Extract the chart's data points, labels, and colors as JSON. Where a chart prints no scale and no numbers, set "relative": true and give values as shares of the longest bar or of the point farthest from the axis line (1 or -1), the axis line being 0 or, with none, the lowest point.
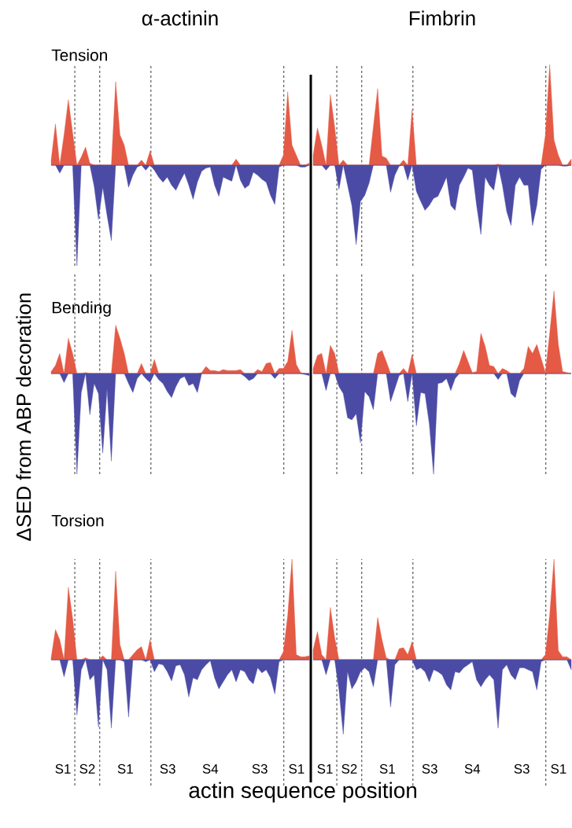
{
  "chart_data": [
    {
      "type": "area",
      "title": "α-actinin",
      "subtitle": "Tension",
      "relative": true,
      "categories": [
        null,
        null,
        null,
        null,
        null,
        null,
        null,
        null,
        null,
        null,
        null,
        null,
        null,
        null,
        null,
        null,
        null,
        null,
        null,
        null,
        null,
        null,
        null,
        null,
        null,
        null,
        null,
        null,
        null,
        null,
        null,
        null,
        null,
        null,
        null,
        null,
        null,
        null,
        null,
        null,
        null,
        null,
        null,
        null,
        null,
        null,
        null,
        null,
        null,
        null,
        null,
        null,
        null,
        null,
        null,
        null,
        null,
        null,
        null,
        null,
        null
      ],
      "series": [
        {
          "color": "#e45a45",
          "values": [
            0.05,
            0.41,
            0,
            0.3,
            0.65,
            0.32,
            0,
            0.08,
            0.18,
            0.02,
            0,
            0,
            0,
            0,
            0,
            0.83,
            0.3,
            0.2,
            0,
            0,
            0,
            0.05,
            0,
            0.14,
            0,
            0,
            0,
            0,
            0,
            0,
            0,
            0,
            0,
            0,
            0,
            0,
            0,
            0,
            0,
            0,
            0,
            0,
            0,
            0.06,
            0,
            0,
            0,
            0,
            0,
            0,
            0,
            0,
            0,
            0,
            0.1,
            0.73,
            0.2,
            0.1,
            0,
            0,
            0.02
          ]
        },
        {
          "color": "#4b4ba6",
          "values": [
            0,
            0,
            -0.08,
            0,
            0,
            0,
            -1,
            0,
            0,
            0,
            -0.21,
            -0.54,
            -0.22,
            -0.5,
            -0.75,
            0,
            0,
            0,
            -0.22,
            -0.1,
            -0.02,
            0,
            -0.05,
            0,
            -0.05,
            -0.12,
            -0.17,
            -0.12,
            -0.2,
            -0.25,
            -0.16,
            -0.08,
            -0.2,
            -0.34,
            -0.17,
            -0.06,
            -0.03,
            -0.02,
            -0.2,
            -0.31,
            -0.12,
            -0.14,
            -0.16,
            0,
            -0.15,
            -0.23,
            -0.2,
            -0.07,
            -0.1,
            -0.14,
            -0.17,
            -0.3,
            -0.39,
            -0.02,
            0,
            0,
            0,
            0,
            -0.02,
            -0.02,
            0
          ]
        }
      ]
    },
    {
      "type": "area",
      "title": "Fimbrin",
      "relative": true,
      "categories": [
        null,
        null,
        null,
        null,
        null,
        null,
        null,
        null,
        null,
        null,
        null,
        null,
        null,
        null,
        null,
        null,
        null,
        null,
        null,
        null,
        null,
        null,
        null,
        null,
        null,
        null,
        null,
        null,
        null,
        null,
        null,
        null,
        null,
        null,
        null,
        null,
        null,
        null,
        null,
        null,
        null,
        null,
        null,
        null,
        null,
        null,
        null,
        null,
        null,
        null,
        null,
        null,
        null,
        null,
        null,
        null,
        null,
        null,
        null,
        null,
        null
      ],
      "series": [
        {
          "color": "#e45a45",
          "values": [
            0.1,
            0.37,
            0.2,
            0,
            0.7,
            0.38,
            0,
            0.05,
            0,
            0,
            0,
            0,
            0,
            0,
            0.38,
            0.76,
            0.09,
            0.07,
            0,
            0,
            0,
            0.05,
            0,
            0.55,
            0,
            0,
            0,
            0,
            0,
            0,
            0,
            0,
            0,
            0,
            0,
            0,
            0,
            0,
            0,
            0,
            0,
            0,
            0,
            0.01,
            0,
            0,
            0,
            0,
            0,
            0,
            0,
            0,
            0,
            0,
            0.3,
            1,
            0.25,
            0.1,
            0,
            0,
            0.06
          ]
        },
        {
          "color": "#4b4ba6",
          "values": [
            0,
            0,
            0,
            -0.05,
            0,
            0,
            -0.24,
            0,
            -0.2,
            -0.4,
            -0.79,
            -0.36,
            -0.3,
            -0.18,
            0,
            0,
            0,
            0,
            -0.27,
            -0.1,
            -0.01,
            0,
            -0.15,
            0,
            -0.26,
            -0.36,
            -0.45,
            -0.4,
            -0.33,
            -0.31,
            -0.22,
            -0.12,
            -0.4,
            -0.45,
            -0.2,
            -0.12,
            -0.03,
            -0.05,
            -0.4,
            -0.69,
            -0.12,
            -0.2,
            -0.25,
            0,
            -0.2,
            -0.46,
            -0.6,
            -0.2,
            -0.12,
            -0.2,
            -0.2,
            -0.6,
            -0.4,
            -0.04,
            0,
            0,
            0,
            0,
            -0.01,
            -0.01,
            0
          ]
        }
      ]
    },
    {
      "type": "area",
      "subtitle": "Bending",
      "ylabel": "ΔSED from ABP decoration",
      "relative": true,
      "categories": [
        null,
        null,
        null,
        null,
        null,
        null,
        null,
        null,
        null,
        null,
        null,
        null,
        null,
        null,
        null,
        null,
        null,
        null,
        null,
        null,
        null,
        null,
        null,
        null,
        null,
        null,
        null,
        null,
        null,
        null,
        null,
        null,
        null,
        null,
        null,
        null,
        null,
        null,
        null,
        null,
        null,
        null,
        null,
        null,
        null,
        null,
        null,
        null,
        null,
        null,
        null,
        null,
        null,
        null,
        null,
        null,
        null,
        null,
        null,
        null,
        null
      ],
      "series": [
        {
          "color": "#e45a45",
          "values": [
            0.02,
            0.08,
            0.2,
            0,
            0.35,
            0.2,
            0,
            0,
            0.01,
            0,
            0,
            0,
            0,
            0,
            0,
            0.48,
            0.35,
            0.2,
            0,
            0,
            0,
            0.1,
            0,
            0,
            0.14,
            0,
            0,
            0,
            0,
            0,
            0,
            0,
            0,
            0,
            0,
            0.01,
            0.07,
            0.03,
            0.03,
            0.02,
            0.04,
            0.03,
            0.03,
            0.03,
            0.04,
            0,
            0,
            0,
            0.04,
            0.02,
            0.1,
            0.11,
            0,
            0.05,
            0.05,
            0.12,
            0.43,
            0.09,
            0.01,
            0,
            0
          ]
        },
        {
          "color": "#4b4ba6",
          "values": [
            0,
            0,
            0,
            -0.09,
            0,
            0,
            -1,
            -0.19,
            0,
            -0.41,
            -0.1,
            -0.2,
            -0.79,
            -0.15,
            -0.87,
            0,
            0,
            0,
            -0.1,
            -0.19,
            -0.05,
            0,
            -0.05,
            -0.09,
            0,
            -0.06,
            -0.1,
            -0.18,
            -0.24,
            -0.13,
            -0.05,
            -0.03,
            -0.12,
            -0.1,
            -0.19,
            0,
            0,
            0,
            0,
            0,
            0,
            0,
            0,
            0,
            0,
            -0.03,
            -0.07,
            -0.05,
            0,
            0,
            0,
            0,
            -0.05,
            0,
            0,
            0,
            0,
            0,
            0,
            -0.01,
            -0.02
          ]
        }
      ]
    },
    {
      "type": "area",
      "relative": true,
      "categories": [
        null,
        null,
        null,
        null,
        null,
        null,
        null,
        null,
        null,
        null,
        null,
        null,
        null,
        null,
        null,
        null,
        null,
        null,
        null,
        null,
        null,
        null,
        null,
        null,
        null,
        null,
        null,
        null,
        null,
        null,
        null,
        null,
        null,
        null,
        null,
        null,
        null,
        null,
        null,
        null,
        null,
        null,
        null,
        null,
        null,
        null,
        null,
        null,
        null,
        null,
        null,
        null,
        null,
        null,
        null,
        null,
        null,
        null,
        null,
        null,
        null
      ],
      "series": [
        {
          "color": "#e45a45",
          "values": [
            0.05,
            0.18,
            0.2,
            0,
            0.28,
            0.2,
            0,
            0,
            0,
            0,
            0,
            0,
            0,
            0,
            0,
            0.2,
            0.23,
            0.12,
            0,
            0,
            0,
            0.05,
            0,
            0.19,
            0,
            0,
            0,
            0,
            0,
            0,
            0,
            0,
            0,
            0,
            0.1,
            0.23,
            0.12,
            0.01,
            0.02,
            0.4,
            0.27,
            0.08,
            0.07,
            0,
            0.05,
            0.03,
            0,
            0,
            0,
            0.05,
            0.27,
            0.2,
            0.29,
            0.15,
            0.01,
            0.4,
            0.82,
            0.29,
            0.02,
            0.01,
            0
          ]
        },
        {
          "color": "#4b4ba6",
          "values": [
            0,
            0,
            0,
            -0.17,
            0,
            0,
            -0.13,
            -0.2,
            -0.44,
            -0.46,
            -0.4,
            -0.69,
            -0.18,
            -0.23,
            -0.36,
            0,
            0,
            0,
            -0.28,
            -0.15,
            -0.02,
            0,
            -0.28,
            0,
            -0.52,
            -0.19,
            -0.2,
            -0.5,
            -1,
            -0.1,
            -0.09,
            -0.05,
            -0.17,
            -0.05,
            0,
            0,
            0,
            0,
            0,
            0,
            0,
            0,
            0,
            -0.06,
            0,
            0,
            -0.2,
            -0.24,
            -0.07,
            0,
            0,
            0,
            0,
            0,
            0,
            0,
            0,
            0,
            0,
            0,
            0
          ]
        }
      ]
    },
    {
      "type": "area",
      "subtitle": "Torsion",
      "xlabel": "actin sequence position",
      "relative": true,
      "categories": [
        null,
        null,
        null,
        null,
        null,
        null,
        null,
        null,
        null,
        null,
        null,
        null,
        null,
        null,
        null,
        null,
        null,
        null,
        null,
        null,
        null,
        null,
        null,
        null,
        null,
        null,
        null,
        null,
        null,
        null,
        null,
        null,
        null,
        null,
        null,
        null,
        null,
        null,
        null,
        null,
        null,
        null,
        null,
        null,
        null,
        null,
        null,
        null,
        null,
        null,
        null,
        null,
        null,
        null,
        null,
        null,
        null,
        null,
        null,
        null,
        null
      ],
      "series": [
        {
          "color": "#e45a45",
          "values": [
            0.02,
            0.3,
            0.2,
            0,
            0.72,
            0.41,
            0,
            0,
            0.02,
            0,
            0,
            0,
            0.04,
            0,
            0,
            0.88,
            0.15,
            0,
            0,
            0.05,
            0.1,
            0.13,
            0,
            0.2,
            0,
            0,
            0,
            0,
            0,
            0,
            0,
            0,
            0,
            0,
            0,
            0,
            0,
            0,
            0,
            0,
            0,
            0,
            0,
            0,
            0,
            0,
            0,
            0,
            0,
            0,
            0,
            0,
            0,
            0,
            0.08,
            0.44,
            1,
            0.05,
            0.03,
            0.03,
            0.04
          ]
        },
        {
          "color": "#4b4ba6",
          "values": [
            0,
            0,
            0,
            -0.17,
            0,
            0,
            -0.55,
            -0.1,
            0,
            -0.2,
            -0.15,
            -0.67,
            0,
            -0.1,
            -0.68,
            0,
            0,
            -0.02,
            -0.57,
            0,
            0,
            0,
            -0.02,
            0,
            -0.12,
            -0.04,
            -0.05,
            -0.12,
            -0.21,
            -0.06,
            -0.05,
            -0.15,
            -0.37,
            -0.18,
            -0.2,
            -0.1,
            -0.05,
            -0.01,
            -0.18,
            -0.29,
            -0.22,
            -0.15,
            -0.1,
            -0.22,
            -0.1,
            -0.12,
            -0.2,
            -0.24,
            -0.08,
            -0.13,
            -0.1,
            -0.18,
            -0.34,
            -0.02,
            0,
            0,
            0,
            0,
            0,
            0,
            0
          ]
        }
      ],
      "annotations": [
        "S1",
        "S2",
        "S1",
        "S3",
        "S4",
        "S3",
        "S1"
      ]
    },
    {
      "type": "area",
      "relative": true,
      "categories": [
        null,
        null,
        null,
        null,
        null,
        null,
        null,
        null,
        null,
        null,
        null,
        null,
        null,
        null,
        null,
        null,
        null,
        null,
        null,
        null,
        null,
        null,
        null,
        null,
        null,
        null,
        null,
        null,
        null,
        null,
        null,
        null,
        null,
        null,
        null,
        null,
        null,
        null,
        null,
        null,
        null,
        null,
        null,
        null,
        null,
        null,
        null,
        null,
        null,
        null,
        null,
        null,
        null,
        null,
        null,
        null,
        null,
        null,
        null,
        null,
        null
      ],
      "series": [
        {
          "color": "#e45a45",
          "values": [
            0.1,
            0.28,
            0.05,
            0,
            0.52,
            0.22,
            0,
            0,
            0,
            0,
            0,
            0,
            0,
            0,
            0,
            0.42,
            0.2,
            0.02,
            0,
            0,
            0.11,
            0.12,
            0.05,
            0.18,
            0,
            0,
            0,
            0,
            0,
            0,
            0,
            0,
            0,
            0,
            0,
            0,
            0,
            0,
            0,
            0,
            0,
            0,
            0,
            0,
            0,
            0,
            0,
            0,
            0,
            0,
            0,
            0,
            0,
            0,
            0.05,
            0.45,
            1,
            0.09,
            0.03,
            0.03,
            0
          ]
        },
        {
          "color": "#4b4ba6",
          "values": [
            0,
            0,
            0,
            -0.15,
            0,
            0,
            -0.3,
            -0.74,
            -0.12,
            -0.29,
            -0.22,
            -0.12,
            -0.08,
            -0.12,
            -0.27,
            0,
            0,
            0,
            -0.47,
            -0.05,
            0,
            0,
            0,
            0,
            -0.1,
            -0.08,
            -0.12,
            -0.22,
            -0.1,
            -0.12,
            -0.15,
            -0.25,
            -0.3,
            -0.12,
            -0.13,
            -0.08,
            -0.05,
            -0.02,
            -0.2,
            -0.27,
            -0.2,
            -0.15,
            -0.2,
            -0.68,
            -0.1,
            -0.05,
            -0.15,
            -0.2,
            -0.08,
            -0.08,
            -0.1,
            -0.12,
            -0.3,
            -0.02,
            0,
            0,
            0,
            0,
            0,
            0,
            -0.1
          ]
        }
      ],
      "annotations": [
        "S1",
        "S2",
        "S1",
        "S3",
        "S4",
        "S3",
        "S1"
      ]
    }
  ]
}
